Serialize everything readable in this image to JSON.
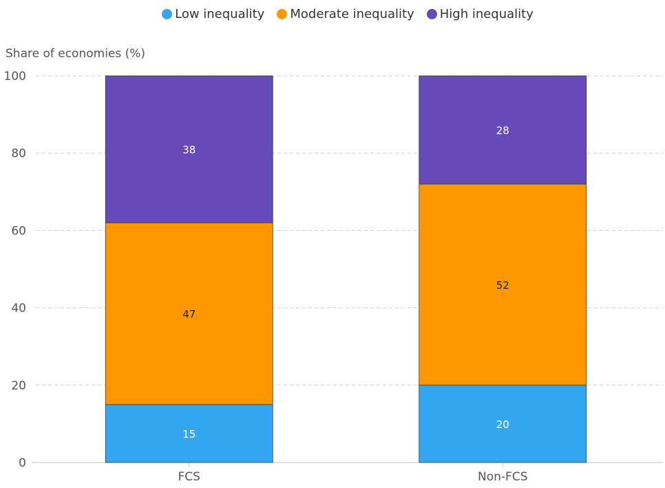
{
  "chart_data": {
    "type": "bar",
    "stacked": true,
    "categories": [
      "FCS",
      "Non-FCS"
    ],
    "series": [
      {
        "name": "Low inequality",
        "color": "#35a7f2",
        "label_color": "#ffffff",
        "values": [
          15,
          20
        ]
      },
      {
        "name": "Moderate inequality",
        "color": "#ff9800",
        "label_color": "#222222",
        "values": [
          47,
          52
        ]
      },
      {
        "name": "High inequality",
        "color": "#664ab7",
        "label_color": "#ffffff",
        "values": [
          38,
          28
        ]
      }
    ],
    "title": "",
    "xlabel": "",
    "ylabel": "Share of economies (%)",
    "ylim": [
      0,
      100
    ],
    "yticks": [
      0,
      20,
      40,
      60,
      80,
      100
    ],
    "grid": true,
    "legend_position": "top-center"
  }
}
